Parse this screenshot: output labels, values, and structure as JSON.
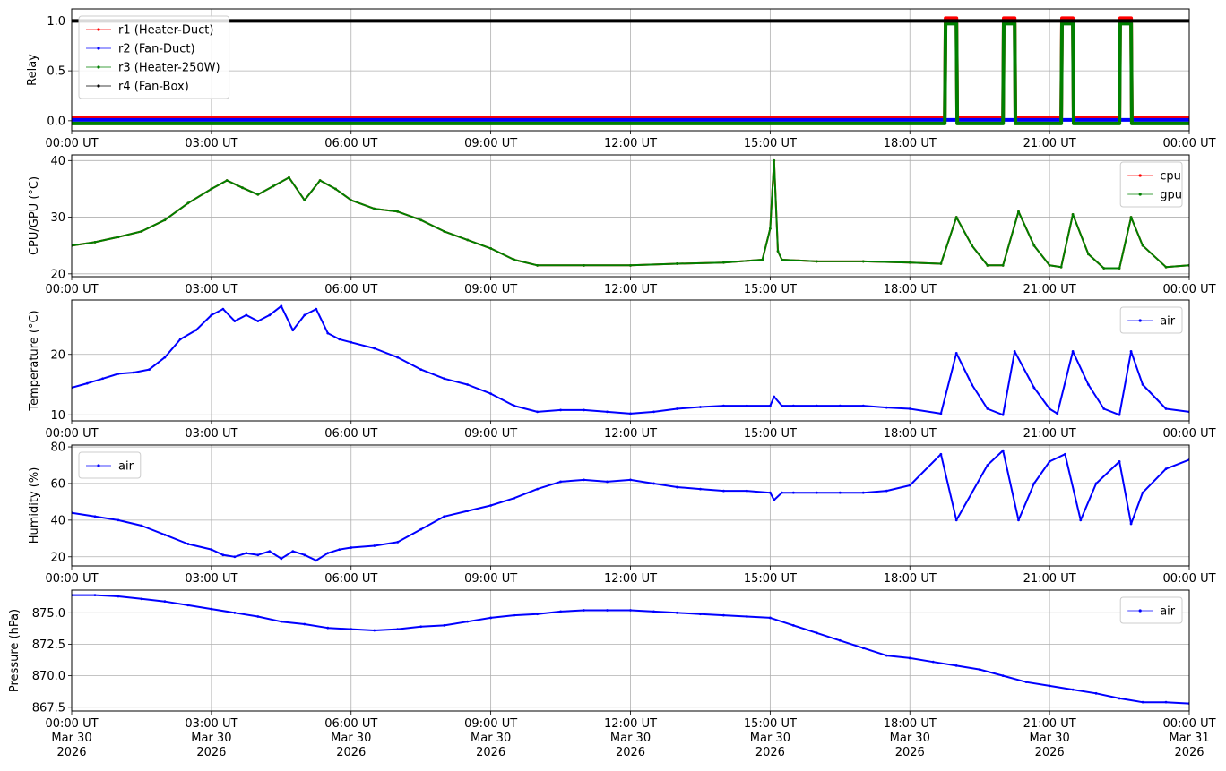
{
  "figure": {
    "background": "#ffffff",
    "grid_color": "#b0b0b0"
  },
  "x_axis": {
    "start": "2026-03-30T00:00Z",
    "end": "2026-03-31T00:00Z",
    "tick_labels": [
      "00:00 UT",
      "03:00 UT",
      "06:00 UT",
      "09:00 UT",
      "12:00 UT",
      "15:00 UT",
      "18:00 UT",
      "21:00 UT",
      "00:00 UT"
    ],
    "date_labels": [
      [
        "Mar 30",
        "2026"
      ],
      [
        "Mar 30",
        "2026"
      ],
      [
        "Mar 30",
        "2026"
      ],
      [
        "Mar 30",
        "2026"
      ],
      [
        "Mar 30",
        "2026"
      ],
      [
        "Mar 30",
        "2026"
      ],
      [
        "Mar 30",
        "2026"
      ],
      [
        "Mar 30",
        "2026"
      ],
      [
        "Mar 31",
        "2026"
      ]
    ]
  },
  "chart_data": [
    {
      "type": "line",
      "ylabel": "Relay",
      "ylim": [
        -0.1,
        1.12
      ],
      "yticks": [
        0.0,
        0.5,
        1.0
      ],
      "ytick_labels": [
        "0.0",
        "0.5",
        "1.0"
      ],
      "grid": true,
      "legend_position": "upper-left",
      "series": [
        {
          "name": "r1 (Heater-Duct)",
          "color": "#ff0000",
          "x": [
            "00:00",
            "18:45",
            "18:46",
            "19:00",
            "19:01",
            "20:00",
            "20:01",
            "20:15",
            "20:16",
            "21:15",
            "21:16",
            "21:30",
            "21:31",
            "22:30",
            "22:31",
            "22:45",
            "22:46",
            "24:00"
          ],
          "y": [
            0,
            0,
            1,
            1,
            0,
            0,
            1,
            1,
            0,
            0,
            1,
            1,
            0,
            0,
            1,
            1,
            0,
            0
          ]
        },
        {
          "name": "r2 (Fan-Duct)",
          "color": "#0000ff",
          "x": [
            "00:00",
            "24:00"
          ],
          "y": [
            0,
            0
          ]
        },
        {
          "name": "r3 (Heater-250W)",
          "color": "#008000",
          "x": [
            "00:00",
            "18:45",
            "18:46",
            "19:00",
            "19:01",
            "20:00",
            "20:01",
            "20:15",
            "20:16",
            "21:15",
            "21:16",
            "21:30",
            "21:31",
            "22:30",
            "22:31",
            "22:45",
            "22:46",
            "24:00"
          ],
          "y": [
            0,
            0,
            1,
            1,
            0,
            0,
            1,
            1,
            0,
            0,
            1,
            1,
            0,
            0,
            1,
            1,
            0,
            0
          ]
        },
        {
          "name": "r4 (Fan-Box)",
          "color": "#000000",
          "x": [
            "00:00",
            "24:00"
          ],
          "y": [
            1,
            1
          ]
        }
      ]
    },
    {
      "type": "line",
      "ylabel": "CPU/GPU (°C)",
      "ylim": [
        19.5,
        41
      ],
      "yticks": [
        20,
        30,
        40
      ],
      "ytick_labels": [
        "20",
        "30",
        "40"
      ],
      "grid": true,
      "legend_position": "upper-right",
      "series": [
        {
          "name": "cpu",
          "color": "#ff0000",
          "x": [
            "00:00",
            "00:30",
            "01:00",
            "01:30",
            "02:00",
            "02:30",
            "03:00",
            "03:20",
            "03:40",
            "04:00",
            "04:20",
            "04:40",
            "05:00",
            "05:20",
            "05:40",
            "06:00",
            "06:30",
            "07:00",
            "07:30",
            "08:00",
            "08:30",
            "09:00",
            "09:30",
            "10:00",
            "11:00",
            "12:00",
            "13:00",
            "14:00",
            "14:50",
            "15:00",
            "15:05",
            "15:10",
            "15:15",
            "16:00",
            "17:00",
            "18:00",
            "18:40",
            "19:00",
            "19:20",
            "19:40",
            "20:00",
            "20:20",
            "20:40",
            "21:00",
            "21:15",
            "21:30",
            "21:50",
            "22:10",
            "22:30",
            "22:45",
            "23:00",
            "23:30",
            "24:00"
          ],
          "y": [
            25,
            25.6,
            26.5,
            27.5,
            29.5,
            32.5,
            35,
            36.5,
            35.2,
            34,
            35.5,
            37,
            33,
            36.5,
            35,
            33,
            31.5,
            31,
            29.5,
            27.5,
            26,
            24.5,
            22.5,
            21.5,
            21.5,
            21.5,
            21.8,
            22,
            22.5,
            28,
            40,
            24,
            22.5,
            22.2,
            22.2,
            22,
            21.8,
            30,
            25,
            21.5,
            21.5,
            31,
            25,
            21.5,
            21.2,
            30.5,
            23.5,
            21,
            21,
            30,
            25,
            21.2,
            21.5
          ]
        },
        {
          "name": "gpu",
          "color": "#008000",
          "x": [
            "00:00",
            "00:30",
            "01:00",
            "01:30",
            "02:00",
            "02:30",
            "03:00",
            "03:20",
            "03:40",
            "04:00",
            "04:20",
            "04:40",
            "05:00",
            "05:20",
            "05:40",
            "06:00",
            "06:30",
            "07:00",
            "07:30",
            "08:00",
            "08:30",
            "09:00",
            "09:30",
            "10:00",
            "11:00",
            "12:00",
            "13:00",
            "14:00",
            "14:50",
            "15:00",
            "15:05",
            "15:10",
            "15:15",
            "16:00",
            "17:00",
            "18:00",
            "18:40",
            "19:00",
            "19:20",
            "19:40",
            "20:00",
            "20:20",
            "20:40",
            "21:00",
            "21:15",
            "21:30",
            "21:50",
            "22:10",
            "22:30",
            "22:45",
            "23:00",
            "23:30",
            "24:00"
          ],
          "y": [
            25,
            25.6,
            26.5,
            27.5,
            29.5,
            32.5,
            35,
            36.5,
            35.2,
            34,
            35.5,
            37,
            33,
            36.5,
            35,
            33,
            31.5,
            31,
            29.5,
            27.5,
            26,
            24.5,
            22.5,
            21.5,
            21.5,
            21.5,
            21.8,
            22,
            22.5,
            28,
            40,
            24,
            22.5,
            22.2,
            22.2,
            22,
            21.8,
            30,
            25,
            21.5,
            21.5,
            31,
            25,
            21.5,
            21.2,
            30.5,
            23.5,
            21,
            21,
            30,
            25,
            21.2,
            21.5
          ]
        }
      ]
    },
    {
      "type": "line",
      "ylabel": "Temperature (°C)",
      "ylim": [
        9,
        29
      ],
      "yticks": [
        10,
        20
      ],
      "ytick_labels": [
        "10",
        "20"
      ],
      "grid": true,
      "legend_position": "upper-right",
      "series": [
        {
          "name": "air",
          "color": "#0000ff",
          "x": [
            "00:00",
            "00:20",
            "00:40",
            "01:00",
            "01:20",
            "01:40",
            "02:00",
            "02:20",
            "02:40",
            "03:00",
            "03:15",
            "03:30",
            "03:45",
            "04:00",
            "04:15",
            "04:30",
            "04:45",
            "05:00",
            "05:15",
            "05:30",
            "05:45",
            "06:00",
            "06:30",
            "07:00",
            "07:30",
            "08:00",
            "08:30",
            "09:00",
            "09:30",
            "10:00",
            "10:30",
            "11:00",
            "11:30",
            "12:00",
            "12:30",
            "13:00",
            "13:30",
            "14:00",
            "14:30",
            "15:00",
            "15:05",
            "15:15",
            "15:30",
            "16:00",
            "16:30",
            "17:00",
            "17:30",
            "18:00",
            "18:40",
            "19:00",
            "19:20",
            "19:40",
            "20:00",
            "20:15",
            "20:40",
            "21:00",
            "21:10",
            "21:30",
            "21:50",
            "22:10",
            "22:30",
            "22:45",
            "23:00",
            "23:30",
            "24:00"
          ],
          "y": [
            14.5,
            15.2,
            16,
            16.8,
            17,
            17.5,
            19.5,
            22.5,
            24,
            26.5,
            27.5,
            25.5,
            26.5,
            25.5,
            26.5,
            28,
            24,
            26.5,
            27.5,
            23.5,
            22.5,
            22,
            21,
            19.5,
            17.5,
            16,
            15,
            13.5,
            11.5,
            10.5,
            10.8,
            10.8,
            10.5,
            10.2,
            10.5,
            11,
            11.3,
            11.5,
            11.5,
            11.5,
            13,
            11.5,
            11.5,
            11.5,
            11.5,
            11.5,
            11.2,
            11,
            10.2,
            20.2,
            15,
            11,
            10,
            20.5,
            14.5,
            11,
            10.2,
            20.5,
            15,
            11,
            10,
            20.5,
            15,
            11,
            10.5
          ]
        }
      ]
    },
    {
      "type": "line",
      "ylabel": "Humidity (%)",
      "ylim": [
        15,
        81
      ],
      "yticks": [
        20,
        40,
        60,
        80
      ],
      "ytick_labels": [
        "20",
        "40",
        "60",
        "80"
      ],
      "grid": true,
      "legend_position": "upper-left",
      "series": [
        {
          "name": "air",
          "color": "#0000ff",
          "x": [
            "00:00",
            "00:30",
            "01:00",
            "01:30",
            "02:00",
            "02:30",
            "03:00",
            "03:15",
            "03:30",
            "03:45",
            "04:00",
            "04:15",
            "04:30",
            "04:45",
            "05:00",
            "05:15",
            "05:30",
            "05:45",
            "06:00",
            "06:30",
            "07:00",
            "07:30",
            "08:00",
            "08:30",
            "09:00",
            "09:30",
            "10:00",
            "10:30",
            "11:00",
            "11:30",
            "12:00",
            "12:30",
            "13:00",
            "13:30",
            "14:00",
            "14:30",
            "15:00",
            "15:05",
            "15:15",
            "15:30",
            "16:00",
            "16:30",
            "17:00",
            "17:30",
            "18:00",
            "18:40",
            "19:00",
            "19:20",
            "19:40",
            "20:00",
            "20:20",
            "20:40",
            "21:00",
            "21:20",
            "21:40",
            "22:00",
            "22:30",
            "22:45",
            "23:00",
            "23:30",
            "24:00"
          ],
          "y": [
            44,
            42,
            40,
            37,
            32,
            27,
            24,
            21,
            20,
            22,
            21,
            23,
            19,
            23,
            21,
            18,
            22,
            24,
            25,
            26,
            28,
            35,
            42,
            45,
            48,
            52,
            57,
            61,
            62,
            61,
            62,
            60,
            58,
            57,
            56,
            56,
            55,
            51,
            55,
            55,
            55,
            55,
            55,
            56,
            59,
            76,
            40,
            55,
            70,
            78,
            40,
            60,
            72,
            76,
            40,
            60,
            72,
            38,
            55,
            68,
            73
          ]
        }
      ]
    },
    {
      "type": "line",
      "ylabel": "Pressure (hPa)",
      "ylim": [
        867.2,
        876.8
      ],
      "yticks": [
        867.5,
        870.0,
        872.5,
        875.0
      ],
      "ytick_labels": [
        "867.5",
        "870.0",
        "872.5",
        "875.0"
      ],
      "grid": true,
      "legend_position": "upper-right",
      "series": [
        {
          "name": "air",
          "color": "#0000ff",
          "x": [
            "00:00",
            "00:30",
            "01:00",
            "01:30",
            "02:00",
            "02:30",
            "03:00",
            "03:30",
            "04:00",
            "04:30",
            "05:00",
            "05:30",
            "06:00",
            "06:30",
            "07:00",
            "07:30",
            "08:00",
            "08:30",
            "09:00",
            "09:30",
            "10:00",
            "10:30",
            "11:00",
            "11:30",
            "12:00",
            "12:30",
            "13:00",
            "13:30",
            "14:00",
            "14:30",
            "15:00",
            "15:30",
            "16:00",
            "16:30",
            "17:00",
            "17:30",
            "18:00",
            "18:30",
            "19:00",
            "19:30",
            "20:00",
            "20:30",
            "21:00",
            "21:30",
            "22:00",
            "22:30",
            "23:00",
            "23:30",
            "24:00"
          ],
          "y": [
            876.4,
            876.4,
            876.3,
            876.1,
            875.9,
            875.6,
            875.3,
            875.0,
            874.7,
            874.3,
            874.1,
            873.8,
            873.7,
            873.6,
            873.7,
            873.9,
            874.0,
            874.3,
            874.6,
            874.8,
            874.9,
            875.1,
            875.2,
            875.2,
            875.2,
            875.1,
            875.0,
            874.9,
            874.8,
            874.7,
            874.6,
            874.0,
            873.4,
            872.8,
            872.2,
            871.6,
            871.4,
            871.1,
            870.8,
            870.5,
            870.0,
            869.5,
            869.2,
            868.9,
            868.6,
            868.2,
            867.9,
            867.9,
            867.8
          ]
        }
      ]
    }
  ]
}
